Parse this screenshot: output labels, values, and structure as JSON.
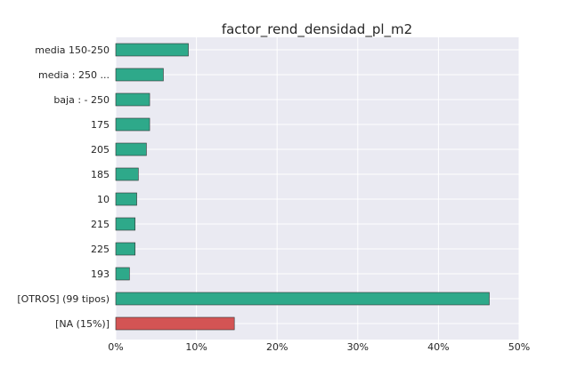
{
  "chart_data": {
    "type": "bar",
    "orientation": "horizontal",
    "title": "factor_rend_densidad_pl_m2",
    "xlabel": "",
    "ylabel": "",
    "xlim": [
      0,
      50
    ],
    "x_ticks": [
      "0%",
      "10%",
      "20%",
      "30%",
      "40%",
      "50%"
    ],
    "grid": true,
    "categories": [
      "media 150-250",
      "media : 250 ...",
      "baja : - 250",
      "175",
      "205",
      "185",
      "10",
      "215",
      "225",
      "193",
      "[OTROS] (99 tipos)",
      "[NA (15%)]"
    ],
    "values": [
      9.0,
      5.9,
      4.2,
      4.2,
      3.8,
      2.8,
      2.6,
      2.4,
      2.4,
      1.7,
      46.3,
      14.7
    ],
    "colors": {
      "default": "#2ea98a",
      "na": "#d35454",
      "plot_bg": "#eaeaf2",
      "grid": "#ffffff"
    }
  }
}
